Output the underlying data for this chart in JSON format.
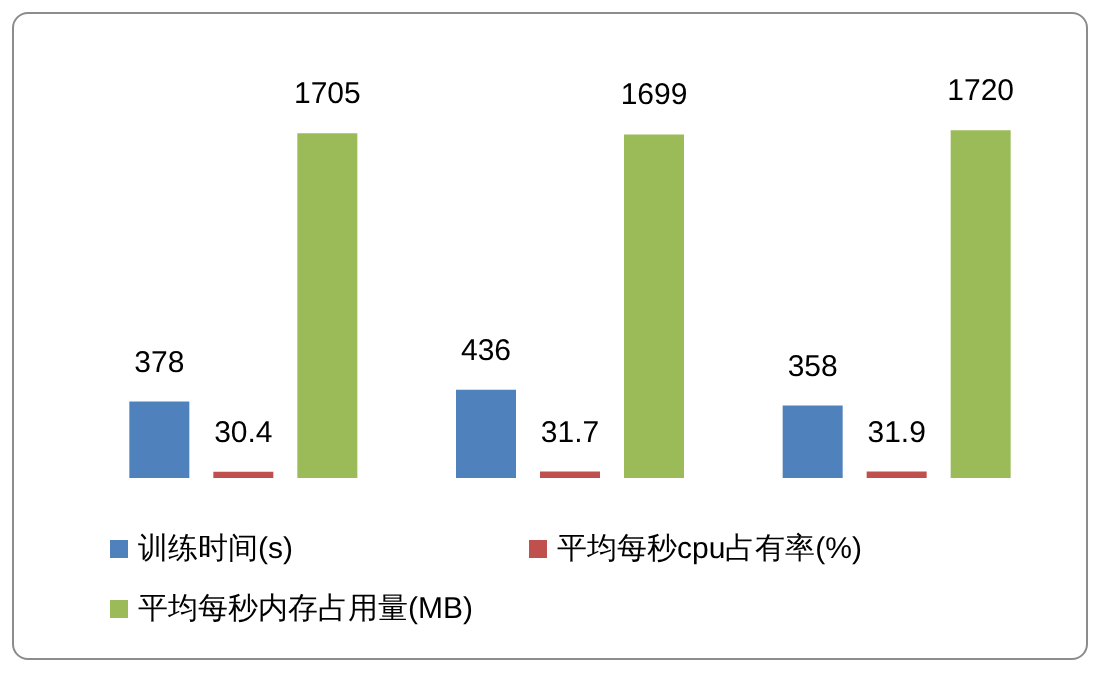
{
  "chart_data": {
    "type": "bar",
    "categories": [
      null,
      null,
      null
    ],
    "series": [
      {
        "name": "训练时间(s)",
        "color": "#4f81bd",
        "values": [
          378,
          436,
          358
        ]
      },
      {
        "name": "平均每秒cpu占有率(%)",
        "color": "#c0504d",
        "values": [
          30.4,
          31.7,
          31.9
        ]
      },
      {
        "name": "平均每秒内存占用量(MB)",
        "color": "#9bbb59",
        "values": [
          1705,
          1699,
          1720
        ]
      }
    ],
    "data_labels": true,
    "legend": "bottom",
    "grid": false
  }
}
